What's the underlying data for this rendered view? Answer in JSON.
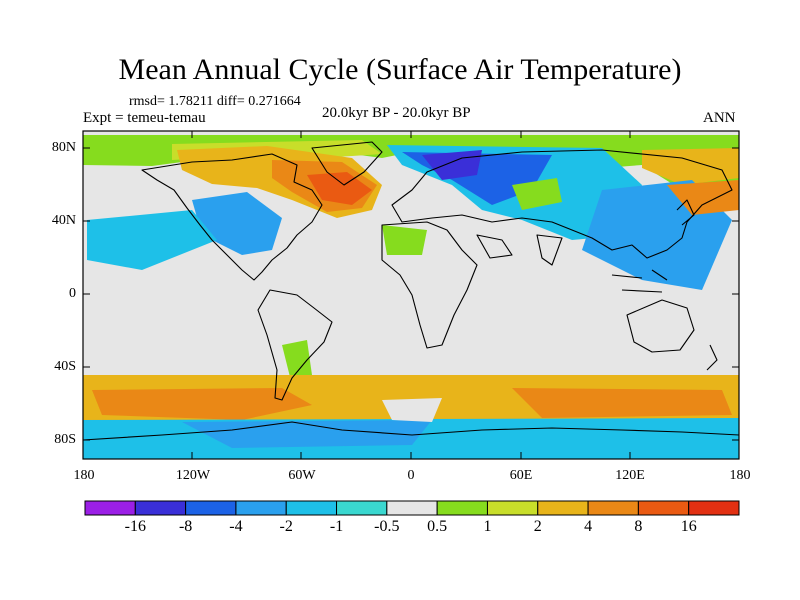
{
  "header": {
    "title": "Mean Annual Cycle (Surface Air Temperature)",
    "stats": "rmsd= 1.78211 diff= 0.271664",
    "expt": "Expt = temeu-temau",
    "period": "20.0kyr BP - 20.0kyr BP",
    "season": "ANN"
  },
  "lat_labels": [
    "80N",
    "40N",
    "0",
    "40S",
    "80S"
  ],
  "lon_labels": [
    "180",
    "120W",
    "60W",
    "0",
    "60E",
    "120E",
    "180"
  ],
  "colorbar": {
    "labels": [
      "-16",
      "-8",
      "-4",
      "-2",
      "-1",
      "-0.5",
      "0.5",
      "1",
      "2",
      "4",
      "8",
      "16"
    ],
    "colors": [
      "#9b1fe6",
      "#3a2fd8",
      "#1c62e6",
      "#2aa0ee",
      "#1ec0e8",
      "#3ad8d0",
      "#e6e6e6",
      "#86dc1e",
      "#c8de2a",
      "#e8b41a",
      "#ea8816",
      "#ea5a12",
      "#e23012"
    ]
  }
}
